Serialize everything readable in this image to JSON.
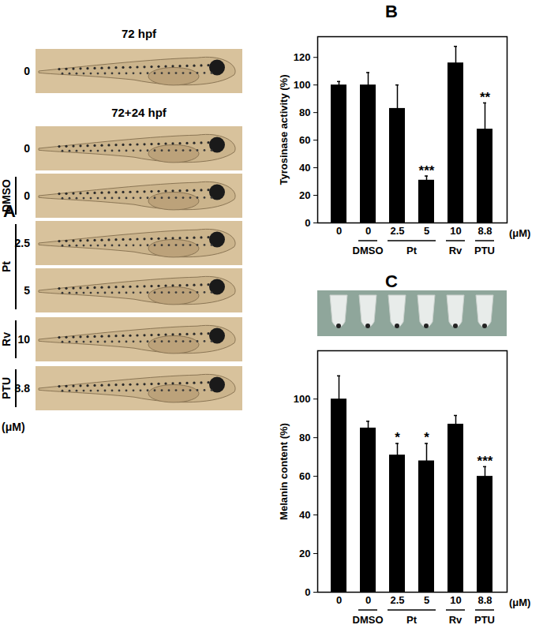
{
  "panel_a": {
    "label": "A",
    "unit": "(μM)",
    "sections": [
      {
        "title": "72 hpf",
        "rows": [
          {
            "group": null,
            "dose": "0"
          }
        ]
      },
      {
        "title": "72+24 hpf",
        "rows": [
          {
            "group": null,
            "dose": "0"
          },
          {
            "group": "DMSO",
            "dose": "0"
          },
          {
            "group": "Pt",
            "dose": "2.5"
          },
          {
            "group": "Pt",
            "dose": "5"
          },
          {
            "group": "Rv",
            "dose": "10"
          },
          {
            "group": "PTU",
            "dose": "8.8"
          }
        ]
      }
    ]
  },
  "chart_data": [
    {
      "type": "bar",
      "panel_label": "B",
      "y_label": "Tyrosinase activity (%)",
      "categories": [
        "0",
        "0",
        "2.5",
        "5",
        "10",
        "8.8"
      ],
      "group_labels": [
        null,
        "DMSO",
        "Pt",
        "Pt",
        "Rv",
        "PTU"
      ],
      "unit_label": "(μM)",
      "values": [
        100,
        100,
        83,
        31,
        116,
        68
      ],
      "errors": [
        2.5,
        9,
        17,
        3,
        12,
        19
      ],
      "significance": [
        null,
        null,
        null,
        "***",
        null,
        "**"
      ],
      "color": "#000000",
      "ylim": [
        0,
        135
      ],
      "yticks": [
        0,
        20,
        40,
        60,
        80,
        100,
        120
      ]
    },
    {
      "type": "bar",
      "panel_label": "C",
      "y_label": "Melanin content (%)",
      "categories": [
        "0",
        "0",
        "2.5",
        "5",
        "10",
        "8.8"
      ],
      "group_labels": [
        null,
        "DMSO",
        "Pt",
        "Pt",
        "Rv",
        "PTU"
      ],
      "unit_label": "(μM)",
      "values": [
        100,
        85,
        71,
        68,
        87,
        60
      ],
      "errors": [
        12,
        3.5,
        6,
        9,
        4.5,
        5
      ],
      "significance": [
        null,
        null,
        "*",
        "*",
        null,
        "***"
      ],
      "color": "#000000",
      "ylim": [
        0,
        125
      ],
      "yticks": [
        0,
        20,
        40,
        60,
        80,
        100
      ]
    }
  ]
}
